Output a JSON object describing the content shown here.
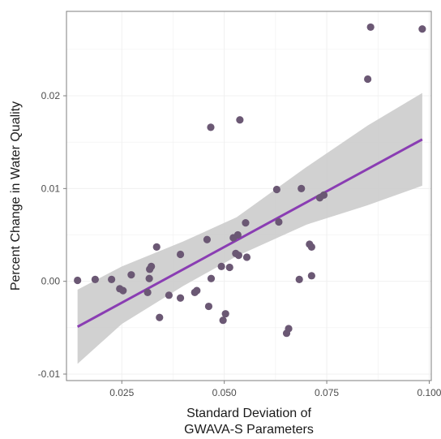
{
  "chart_data": {
    "type": "scatter",
    "xlabel_lines": [
      "Standard Deviation of",
      "GWAVA-S Parameters"
    ],
    "ylabel": "Percent Change in Water Quality",
    "xlim": [
      0.0115,
      0.1005
    ],
    "ylim": [
      -0.0107,
      0.0291
    ],
    "x_ticks": [
      0.025,
      0.05,
      0.075,
      0.1
    ],
    "x_tick_labels": [
      "0.025",
      "0.050",
      "0.075",
      "0.100"
    ],
    "y_ticks": [
      -0.01,
      0.0,
      0.01,
      0.02
    ],
    "y_tick_labels": [
      "-0.01",
      "0.00",
      "0.01",
      "0.02"
    ],
    "grid": true,
    "points": [
      {
        "x": 0.0142,
        "y": 0.0001
      },
      {
        "x": 0.0185,
        "y": 0.0002
      },
      {
        "x": 0.0225,
        "y": 0.0002
      },
      {
        "x": 0.0245,
        "y": -0.0008
      },
      {
        "x": 0.0253,
        "y": -0.001
      },
      {
        "x": 0.0273,
        "y": 0.0007
      },
      {
        "x": 0.0313,
        "y": -0.0012
      },
      {
        "x": 0.0317,
        "y": 0.0003
      },
      {
        "x": 0.0318,
        "y": 0.0013
      },
      {
        "x": 0.0322,
        "y": 0.0016
      },
      {
        "x": 0.0335,
        "y": 0.0037
      },
      {
        "x": 0.0342,
        "y": -0.0039
      },
      {
        "x": 0.0365,
        "y": -0.0015
      },
      {
        "x": 0.0393,
        "y": 0.0029
      },
      {
        "x": 0.0393,
        "y": -0.0018
      },
      {
        "x": 0.0428,
        "y": -0.0012
      },
      {
        "x": 0.0433,
        "y": -0.001
      },
      {
        "x": 0.0458,
        "y": 0.0045
      },
      {
        "x": 0.0462,
        "y": -0.0027
      },
      {
        "x": 0.0467,
        "y": 0.0166
      },
      {
        "x": 0.0468,
        "y": 0.0003
      },
      {
        "x": 0.0493,
        "y": 0.0016
      },
      {
        "x": 0.0497,
        "y": -0.0042
      },
      {
        "x": 0.0503,
        "y": -0.0035
      },
      {
        "x": 0.0513,
        "y": 0.0015
      },
      {
        "x": 0.0522,
        "y": 0.0047
      },
      {
        "x": 0.0528,
        "y": 0.003
      },
      {
        "x": 0.0533,
        "y": 0.005
      },
      {
        "x": 0.0535,
        "y": 0.0028
      },
      {
        "x": 0.0538,
        "y": 0.0174
      },
      {
        "x": 0.0552,
        "y": 0.0063
      },
      {
        "x": 0.0555,
        "y": 0.0026
      },
      {
        "x": 0.0628,
        "y": 0.0099
      },
      {
        "x": 0.0633,
        "y": 0.0064
      },
      {
        "x": 0.0652,
        "y": -0.0056
      },
      {
        "x": 0.0657,
        "y": -0.0051
      },
      {
        "x": 0.0683,
        "y": 0.0002
      },
      {
        "x": 0.0688,
        "y": 0.01
      },
      {
        "x": 0.0708,
        "y": 0.004
      },
      {
        "x": 0.0713,
        "y": 0.0037
      },
      {
        "x": 0.0713,
        "y": 0.0006
      },
      {
        "x": 0.0733,
        "y": 0.009
      },
      {
        "x": 0.0743,
        "y": 0.0093
      },
      {
        "x": 0.085,
        "y": 0.0218
      },
      {
        "x": 0.0857,
        "y": 0.0274
      },
      {
        "x": 0.0983,
        "y": 0.0272
      }
    ],
    "regression": {
      "x0": 0.0142,
      "y0": -0.0049,
      "x1": 0.0983,
      "y1": 0.0153
    },
    "confidence_band": {
      "x": [
        0.0142,
        0.025,
        0.04,
        0.053,
        0.07,
        0.085,
        0.0983
      ],
      "upper": [
        -0.0009,
        0.0016,
        0.0043,
        0.0069,
        0.0123,
        0.0168,
        0.0203
      ],
      "lower": [
        -0.0089,
        -0.0046,
        -0.0005,
        0.0027,
        0.0061,
        0.0082,
        0.0103
      ]
    },
    "colors": {
      "points": "#6b5874",
      "line": "#8a3db3",
      "band": "#cccccc",
      "grid": "#f0f0f0",
      "frame": "#7f7f7f"
    }
  }
}
